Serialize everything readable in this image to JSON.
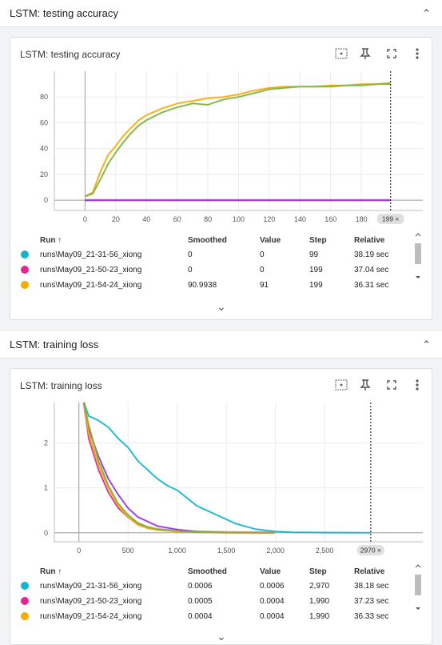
{
  "sections": [
    {
      "header": "LSTM: testing accuracy",
      "card_title": "LSTM: testing accuracy",
      "step_badge": "199 ×"
    },
    {
      "header": "LSTM: training loss",
      "card_title": "LSTM: training loss",
      "step_badge": "2970 ×"
    }
  ],
  "icons": {
    "fit": "fit-domain-icon",
    "pin": "pin-icon",
    "fullscreen": "fullscreen-icon",
    "menu": "more-vert-icon",
    "collapse": "chevron-up-icon",
    "expand": "chevron-down-icon"
  },
  "colors": {
    "cyan": "#12b5cb",
    "magenta": "#e52592",
    "orange": "#f9ab00",
    "purple": "#9334e6",
    "green": "#7cb342"
  },
  "table_headers": {
    "run": "Run ↑",
    "smoothed": "Smoothed",
    "value": "Value",
    "step": "Step",
    "relative": "Relative"
  },
  "accuracy_rows": [
    {
      "run": "runs\\May09_21-31-56_xiong",
      "smoothed": "0",
      "value": "0",
      "step": "99",
      "relative": "38.19 sec"
    },
    {
      "run": "runs\\May09_21-50-23_xiong",
      "smoothed": "0",
      "value": "0",
      "step": "199",
      "relative": "37.04 sec"
    },
    {
      "run": "runs\\May09_21-54-24_xiong",
      "smoothed": "90.9938",
      "value": "91",
      "step": "199",
      "relative": "36.31 sec"
    }
  ],
  "loss_rows": [
    {
      "run": "runs\\May09_21-31-56_xiong",
      "smoothed": "0.0006",
      "value": "0.0006",
      "step": "2,970",
      "relative": "38.18 sec"
    },
    {
      "run": "runs\\May09_21-50-23_xiong",
      "smoothed": "0.0005",
      "value": "0.0004",
      "step": "1,990",
      "relative": "37.23 sec"
    },
    {
      "run": "runs\\May09_21-54-24_xiong",
      "smoothed": "0.0004",
      "value": "0.0004",
      "step": "1,990",
      "relative": "36.33 sec"
    }
  ],
  "chart_data": [
    {
      "type": "line",
      "x_ticks": [
        "0",
        "20",
        "40",
        "60",
        "80",
        "100",
        "120",
        "140",
        "160",
        "180"
      ],
      "y_ticks": [
        "0",
        "20",
        "40",
        "60",
        "80"
      ],
      "xlim": [
        -20,
        220
      ],
      "ylim": [
        -8,
        100
      ],
      "series": [
        {
          "color": "#f9ab00",
          "x": [
            0,
            5,
            10,
            15,
            20,
            25,
            30,
            35,
            40,
            50,
            60,
            70,
            80,
            90,
            100,
            110,
            120,
            130,
            140,
            150,
            160,
            170,
            180,
            190,
            199
          ],
          "y": [
            3,
            6,
            22,
            35,
            42,
            50,
            56,
            62,
            66,
            71,
            75,
            77,
            79,
            80,
            82,
            85,
            87,
            88,
            88,
            88,
            89,
            89,
            90,
            90,
            91
          ]
        },
        {
          "color": "#7cb342",
          "x": [
            0,
            5,
            10,
            15,
            20,
            25,
            30,
            35,
            40,
            50,
            60,
            70,
            80,
            90,
            100,
            110,
            120,
            130,
            140,
            150,
            160,
            170,
            180,
            190,
            199
          ],
          "y": [
            3,
            5,
            16,
            28,
            37,
            45,
            52,
            58,
            62,
            68,
            72,
            75,
            74,
            78,
            80,
            83,
            86,
            87,
            88,
            88,
            88,
            89,
            89,
            90,
            90
          ]
        },
        {
          "color": "#e52592",
          "x": [
            0,
            199
          ],
          "y": [
            0,
            0
          ]
        },
        {
          "color": "#9334e6",
          "x": [
            0,
            199
          ],
          "y": [
            0,
            0
          ]
        }
      ],
      "marker_x": 199
    },
    {
      "type": "line",
      "x_ticks": [
        "0",
        "500",
        "1,000",
        "1,500",
        "2,000",
        "2,500"
      ],
      "y_ticks": [
        "0",
        "1",
        "2"
      ],
      "xlim": [
        -250,
        3500
      ],
      "ylim": [
        -0.2,
        2.9
      ],
      "series": [
        {
          "color": "#12b5cb",
          "x": [
            50,
            100,
            150,
            200,
            300,
            400,
            500,
            600,
            700,
            800,
            900,
            1000,
            1200,
            1400,
            1600,
            1800,
            2000,
            2200,
            2500,
            2970
          ],
          "y": [
            2.9,
            2.6,
            2.55,
            2.5,
            2.35,
            2.1,
            1.9,
            1.6,
            1.4,
            1.2,
            1.05,
            0.95,
            0.6,
            0.4,
            0.2,
            0.08,
            0.03,
            0.01,
            0.005,
            0.0006
          ]
        },
        {
          "color": "#9334e6",
          "x": [
            50,
            100,
            200,
            300,
            400,
            500,
            600,
            700,
            800,
            1000,
            1200,
            1500,
            1990
          ],
          "y": [
            2.9,
            2.3,
            1.7,
            1.2,
            0.85,
            0.55,
            0.35,
            0.25,
            0.15,
            0.07,
            0.03,
            0.01,
            0.0005
          ]
        },
        {
          "color": "#e52592",
          "x": [
            50,
            100,
            200,
            300,
            400,
            500,
            600,
            700,
            800,
            1000,
            1200,
            1500,
            1990
          ],
          "y": [
            2.9,
            2.1,
            1.4,
            0.9,
            0.55,
            0.35,
            0.2,
            0.12,
            0.08,
            0.04,
            0.02,
            0.01,
            0.0005
          ]
        },
        {
          "color": "#f9ab00",
          "x": [
            50,
            100,
            200,
            300,
            400,
            500,
            600,
            700,
            800,
            1000,
            1200,
            1500,
            1990
          ],
          "y": [
            2.9,
            2.2,
            1.5,
            1.0,
            0.6,
            0.35,
            0.18,
            0.1,
            0.06,
            0.03,
            0.015,
            0.005,
            0.0004
          ]
        },
        {
          "color": "#7cb342",
          "x": [
            50,
            100,
            200,
            300,
            400,
            500,
            600,
            700,
            800,
            1000,
            1200,
            1500,
            1990
          ],
          "y": [
            2.9,
            2.4,
            1.6,
            1.05,
            0.65,
            0.4,
            0.22,
            0.13,
            0.08,
            0.04,
            0.02,
            0.008,
            0.0004
          ]
        }
      ],
      "marker_x": 2970
    }
  ]
}
